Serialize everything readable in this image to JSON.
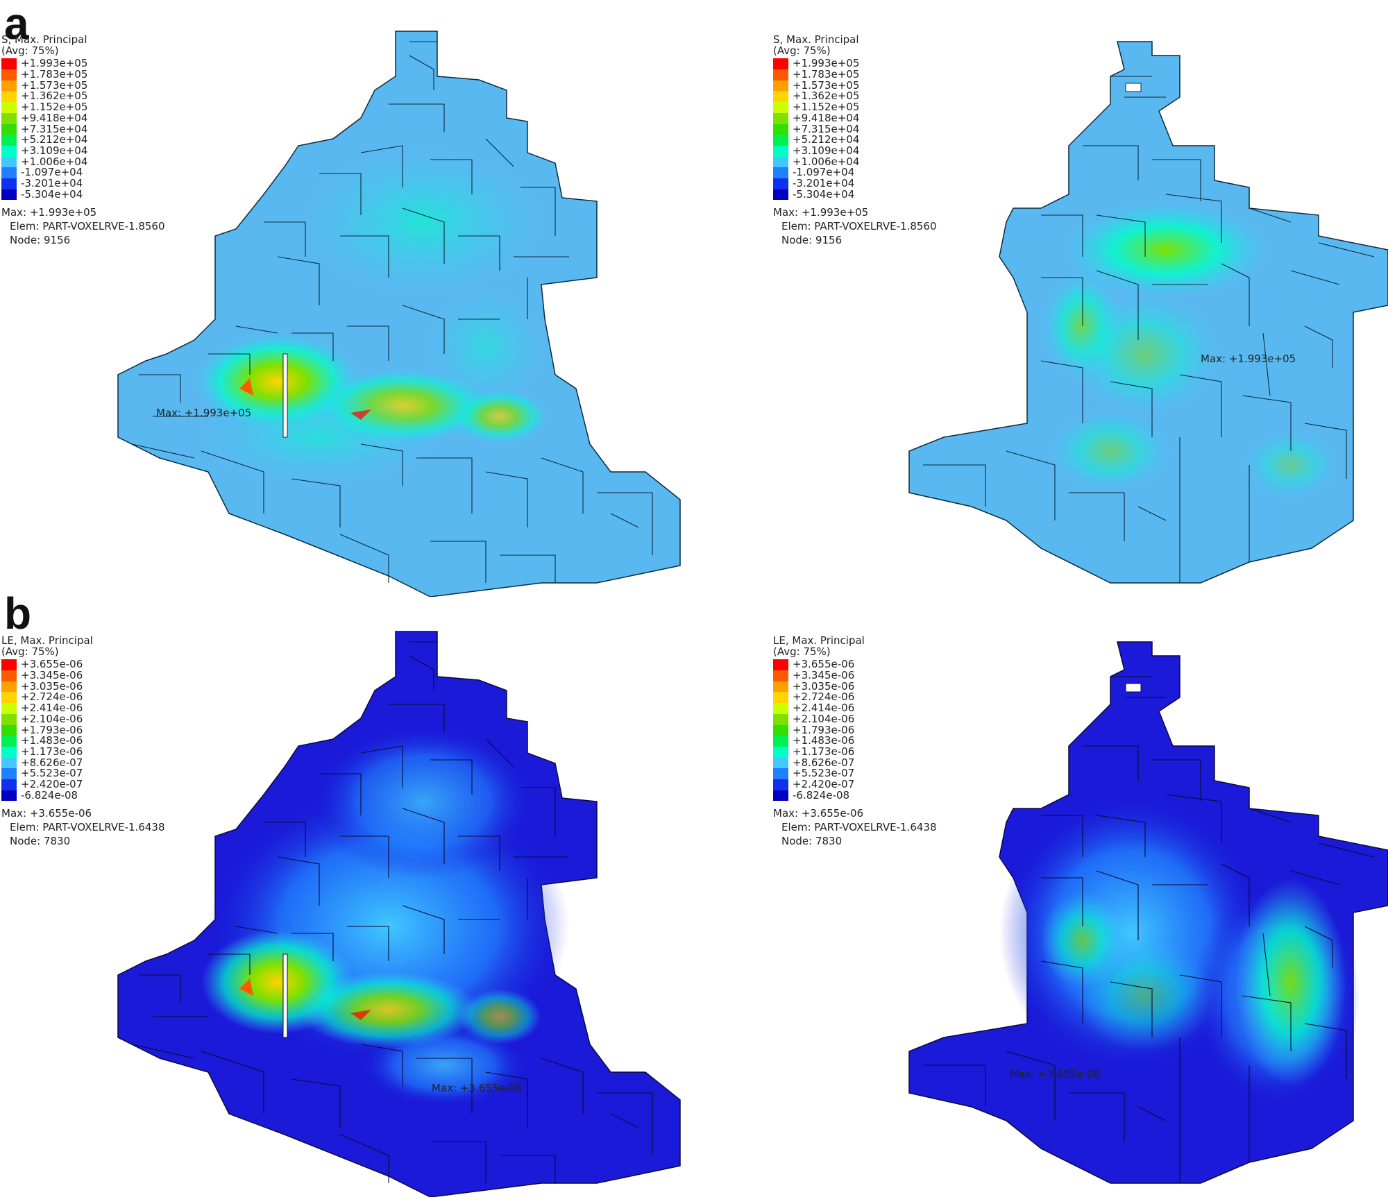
{
  "panels": [
    {
      "letter": "a",
      "views": [
        {
          "field_label": "S, Max. Principal",
          "avg_label": "(Avg: 75%)",
          "scale_values": [
            "+1.993e+05",
            "+1.783e+05",
            "+1.573e+05",
            "+1.362e+05",
            "+1.152e+05",
            "+9.418e+04",
            "+7.315e+04",
            "+5.212e+04",
            "+3.109e+04",
            "+1.006e+04",
            "-1.097e+04",
            "-3.201e+04",
            "-5.304e+04"
          ],
          "max_line": "Max: +1.993e+05",
          "elem_line": "Elem: PART-VOXELRVE-1.8560",
          "node_line": "Node: 9156",
          "max_marker": "Max: +1.993e+05"
        },
        {
          "field_label": "S, Max. Principal",
          "avg_label": "(Avg: 75%)",
          "scale_values": [
            "+1.993e+05",
            "+1.783e+05",
            "+1.573e+05",
            "+1.362e+05",
            "+1.152e+05",
            "+9.418e+04",
            "+7.315e+04",
            "+5.212e+04",
            "+3.109e+04",
            "+1.006e+04",
            "-1.097e+04",
            "-3.201e+04",
            "-5.304e+04"
          ],
          "max_line": "Max: +1.993e+05",
          "elem_line": "Elem: PART-VOXELRVE-1.8560",
          "node_line": "Node: 9156",
          "max_marker": "Max: +1.993e+05"
        }
      ]
    },
    {
      "letter": "b",
      "views": [
        {
          "field_label": "LE, Max. Principal",
          "avg_label": "(Avg: 75%)",
          "scale_values": [
            "+3.655e-06",
            "+3.345e-06",
            "+3.035e-06",
            "+2.724e-06",
            "+2.414e-06",
            "+2.104e-06",
            "+1.793e-06",
            "+1.483e-06",
            "+1.173e-06",
            "+8.626e-07",
            "+5.523e-07",
            "+2.420e-07",
            "-6.824e-08"
          ],
          "max_line": "Max: +3.655e-06",
          "elem_line": "Elem: PART-VOXELRVE-1.6438",
          "node_line": "Node: 7830",
          "max_marker": "Max: +3.655e-06"
        },
        {
          "field_label": "LE, Max. Principal",
          "avg_label": "(Avg: 75%)",
          "scale_values": [
            "+3.655e-06",
            "+3.345e-06",
            "+3.035e-06",
            "+2.724e-06",
            "+2.414e-06",
            "+2.104e-06",
            "+1.793e-06",
            "+1.483e-06",
            "+1.173e-06",
            "+8.626e-07",
            "+5.523e-07",
            "+2.420e-07",
            "-6.824e-08"
          ],
          "max_line": "Max: +3.655e-06",
          "elem_line": "Elem: PART-VOXELRVE-1.6438",
          "node_line": "Node: 7830",
          "max_marker": "Max: +3.655e-06"
        }
      ]
    }
  ],
  "colors": {
    "contour_scale": [
      "#ff0000",
      "#ff5a00",
      "#ffa000",
      "#ffd400",
      "#ccff00",
      "#7fe000",
      "#33dd00",
      "#00f050",
      "#00ffc8",
      "#40c8ff",
      "#2080ff",
      "#1030f0",
      "#0000c0"
    ],
    "stress_base": "#5ab8f0",
    "strain_base": "#1a1ad8",
    "edge": "#0a2a3a"
  }
}
